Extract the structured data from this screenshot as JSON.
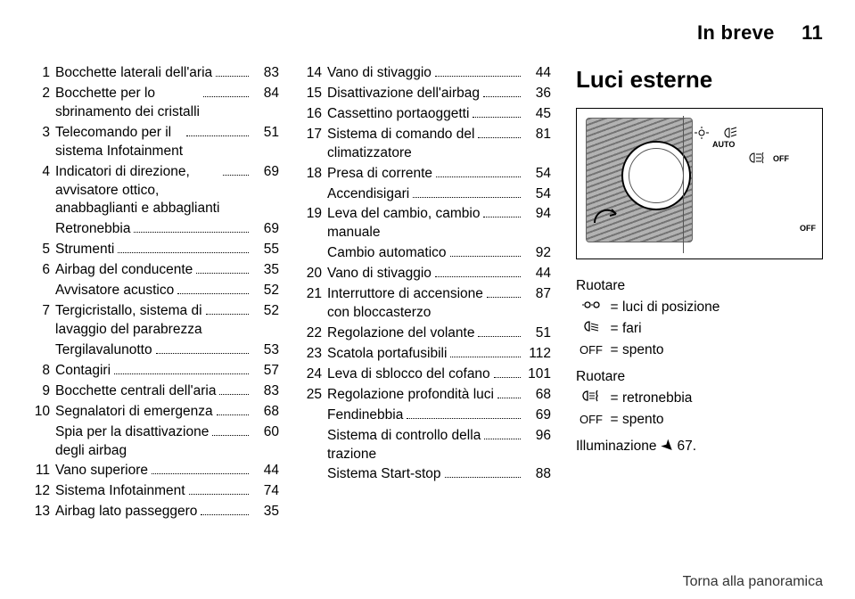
{
  "header": {
    "chapter": "In breve",
    "page_no": "11"
  },
  "col1": [
    {
      "n": "1",
      "t": "Bocchette laterali dell'aria",
      "p": "83"
    },
    {
      "n": "2",
      "t": "Bocchette per lo\nsbrinamento dei cristalli",
      "p": "84"
    },
    {
      "n": "3",
      "t": "Telecomando per il\nsistema Infotainment",
      "p": "51"
    },
    {
      "n": "4",
      "t": "Indicatori di direzione,\navvisatore ottico,\nanabbaglianti e abbaglianti",
      "p": "69"
    },
    {
      "n": "",
      "t": "Retronebbia",
      "p": "69",
      "sub": true
    },
    {
      "n": "5",
      "t": "Strumenti",
      "p": "55"
    },
    {
      "n": "6",
      "t": "Airbag del conducente",
      "p": "35"
    },
    {
      "n": "",
      "t": "Avvisatore acustico",
      "p": "52",
      "sub": true
    },
    {
      "n": "7",
      "t": "Tergicristallo, sistema di\nlavaggio del parabrezza",
      "p": "52"
    },
    {
      "n": "",
      "t": "Tergilavalunotto",
      "p": "53",
      "sub": true
    },
    {
      "n": "8",
      "t": "Contagiri",
      "p": "57"
    },
    {
      "n": "9",
      "t": "Bocchette centrali dell'aria",
      "p": "83"
    },
    {
      "n": "10",
      "t": "Segnalatori di emergenza",
      "p": "68"
    },
    {
      "n": "",
      "t": "Spia per la disattivazione\ndegli airbag",
      "p": "60",
      "sub": true
    },
    {
      "n": "11",
      "t": "Vano superiore",
      "p": "44"
    },
    {
      "n": "12",
      "t": "Sistema Infotainment",
      "p": "74"
    },
    {
      "n": "13",
      "t": "Airbag lato passeggero",
      "p": "35"
    }
  ],
  "col2": [
    {
      "n": "14",
      "t": "Vano di stivaggio",
      "p": "44"
    },
    {
      "n": "15",
      "t": "Disattivazione dell'airbag",
      "p": "36"
    },
    {
      "n": "16",
      "t": "Cassettino portaoggetti",
      "p": "45"
    },
    {
      "n": "17",
      "t": "Sistema di comando del\nclimatizzatore",
      "p": "81"
    },
    {
      "n": "18",
      "t": "Presa di corrente",
      "p": "54"
    },
    {
      "n": "",
      "t": "Accendisigari",
      "p": "54",
      "sub": true
    },
    {
      "n": "19",
      "t": "Leva del cambio, cambio\nmanuale",
      "p": "94"
    },
    {
      "n": "",
      "t": "Cambio automatico",
      "p": "92",
      "sub": true
    },
    {
      "n": "20",
      "t": "Vano di stivaggio",
      "p": "44"
    },
    {
      "n": "21",
      "t": "Interruttore di accensione\ncon bloccasterzo",
      "p": "87"
    },
    {
      "n": "22",
      "t": "Regolazione del volante",
      "p": "51"
    },
    {
      "n": "23",
      "t": "Scatola portafusibili",
      "p": "112"
    },
    {
      "n": "24",
      "t": "Leva di sblocco del cofano",
      "p": "101"
    },
    {
      "n": "25",
      "t": "Regolazione profondità luci",
      "p": "68"
    },
    {
      "n": "",
      "t": "Fendinebbia",
      "p": "69",
      "sub": true
    },
    {
      "n": "",
      "t": "Sistema di controllo della\ntrazione",
      "p": "96",
      "sub": true
    },
    {
      "n": "",
      "t": "Sistema Start-stop",
      "p": "88",
      "sub": true
    }
  ],
  "col3": {
    "heading": "Luci esterne",
    "rotate": "Ruotare",
    "rows1": [
      {
        "sym": "poslight",
        "val": "luci di posizione"
      },
      {
        "sym": "lowbeam",
        "val": "fari"
      },
      {
        "sym": "OFF",
        "val": "spento",
        "plain": true
      }
    ],
    "rotate2": "Ruotare",
    "rows2": [
      {
        "sym": "rearfog",
        "val": "retronebbia"
      },
      {
        "sym": "OFF",
        "val": "spento",
        "plain": true
      }
    ],
    "illum": "Illuminazione",
    "illum_ref": "67."
  },
  "figure": {
    "labels": {
      "auto": "AUTO",
      "off": "OFF"
    },
    "background_color": "#ffffff",
    "border_color": "#000000"
  },
  "footer": "Torna alla panoramica"
}
